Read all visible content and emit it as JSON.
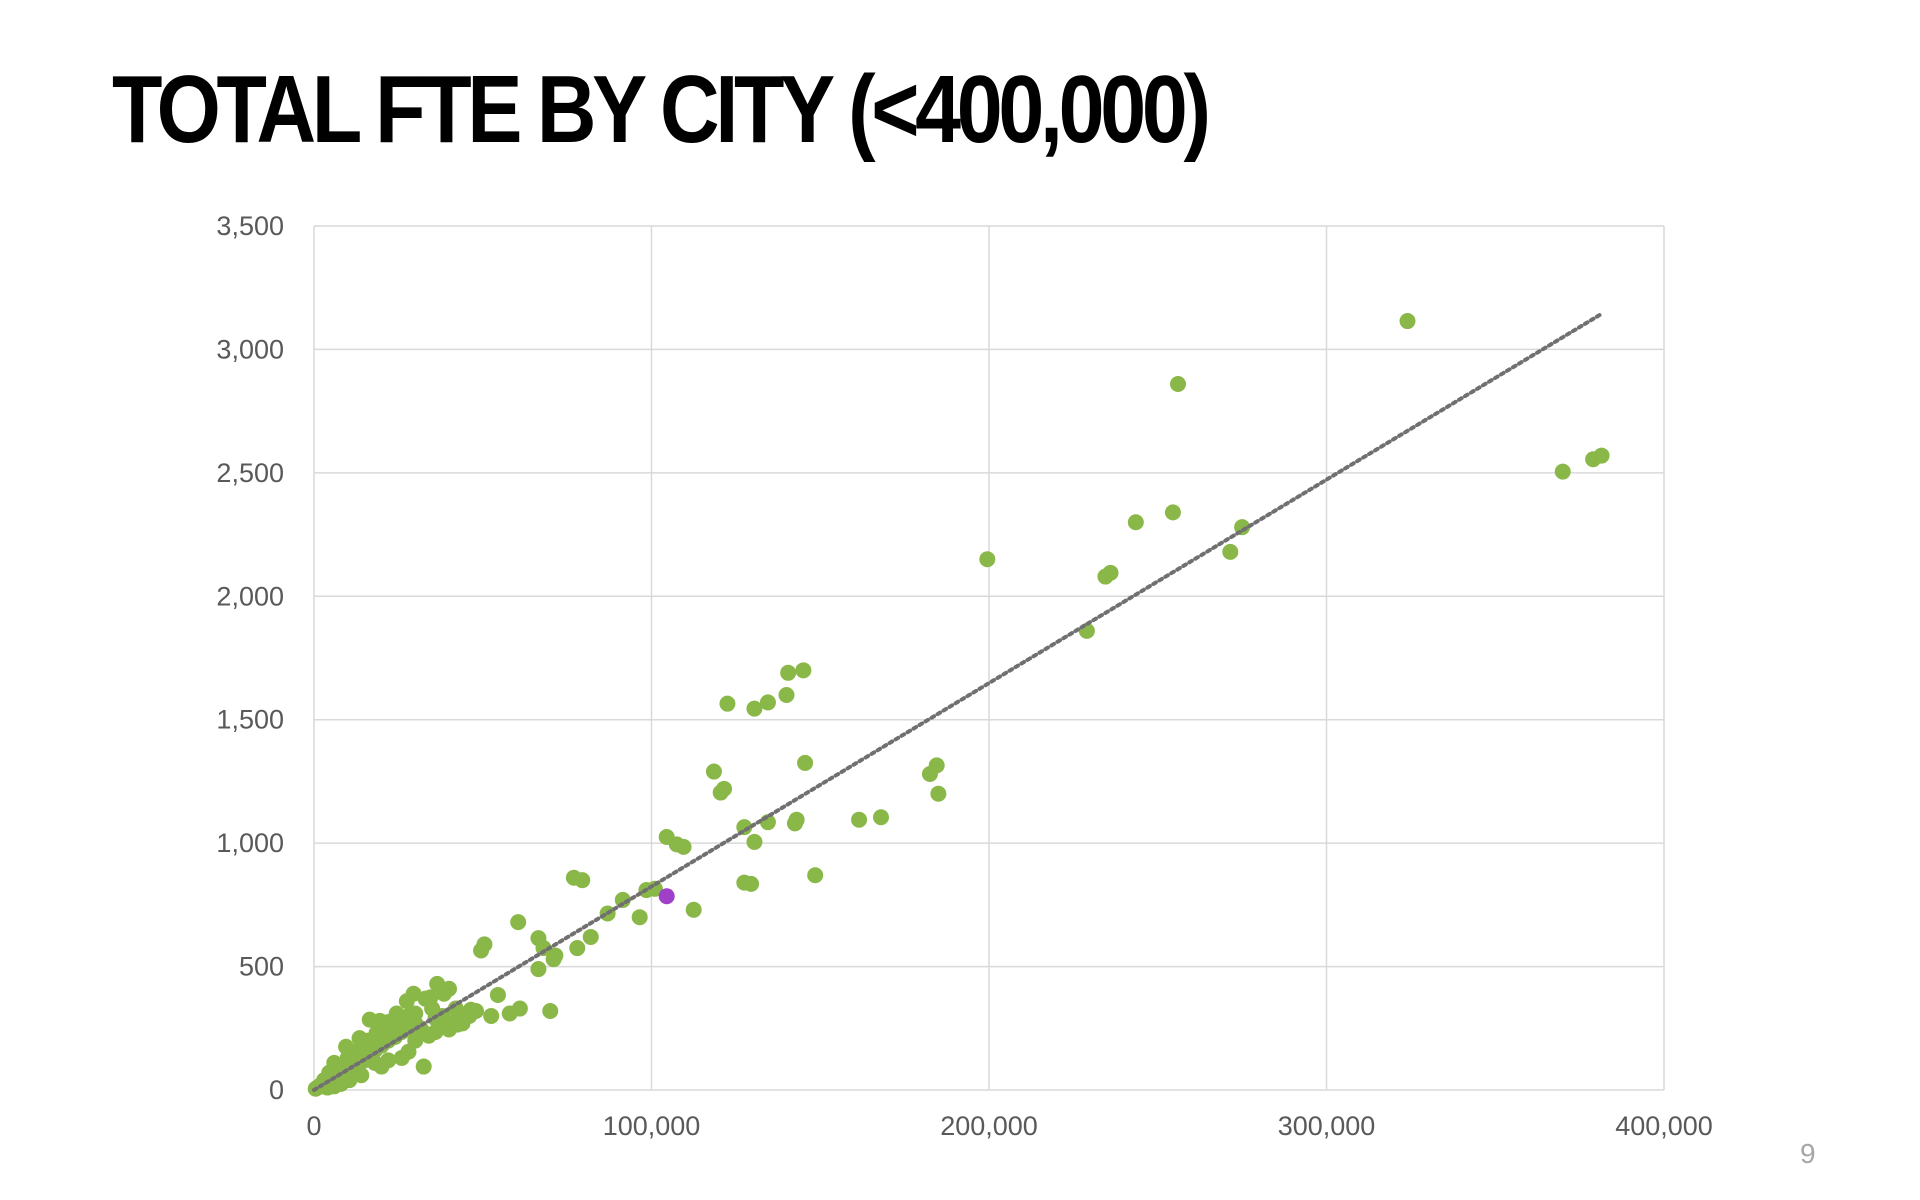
{
  "slide": {
    "title": "TOTAL FTE BY CITY (<400,000)",
    "page_number": "9"
  },
  "chart_data": {
    "type": "scatter",
    "title": "",
    "xlabel": "",
    "ylabel": "",
    "xlim": [
      0,
      400000
    ],
    "ylim": [
      0,
      3500
    ],
    "x_ticks": [
      0,
      100000,
      200000,
      300000,
      400000
    ],
    "y_ticks": [
      0,
      500,
      1000,
      1500,
      2000,
      2500,
      3000,
      3500
    ],
    "x_tick_labels": [
      "0",
      "100,000",
      "200,000",
      "300,000",
      "400,000"
    ],
    "y_tick_labels": [
      "0",
      "500",
      "1,000",
      "1,500",
      "2,000",
      "2,500",
      "3,000",
      "3,500"
    ],
    "grid": true,
    "legend": "none",
    "colors": {
      "points": "#8ab848",
      "highlight": "#a040c8",
      "trendline": "#707070",
      "grid": "#d9d9d9"
    },
    "trendline": {
      "style": "dotted",
      "from": [
        0,
        0
      ],
      "to": [
        381000,
        3140
      ]
    },
    "highlight_point": {
      "x": 104500,
      "y": 785
    },
    "series": [
      {
        "points": [
          [
            324000,
            3115
          ],
          [
            256000,
            2860
          ],
          [
            254500,
            2340
          ],
          [
            243500,
            2300
          ],
          [
            275000,
            2280
          ],
          [
            271500,
            2180
          ],
          [
            236000,
            2095
          ],
          [
            234500,
            2080
          ],
          [
            229000,
            1860
          ],
          [
            199500,
            2150
          ],
          [
            370000,
            2505
          ],
          [
            379000,
            2555
          ],
          [
            381500,
            2570
          ],
          [
            145000,
            1700
          ],
          [
            140500,
            1690
          ],
          [
            140000,
            1600
          ],
          [
            134500,
            1570
          ],
          [
            130500,
            1545
          ],
          [
            122500,
            1565
          ],
          [
            118500,
            1290
          ],
          [
            121500,
            1220
          ],
          [
            120500,
            1205
          ],
          [
            145500,
            1325
          ],
          [
            184500,
            1315
          ],
          [
            182500,
            1280
          ],
          [
            185000,
            1200
          ],
          [
            168000,
            1105
          ],
          [
            161500,
            1095
          ],
          [
            143000,
            1095
          ],
          [
            142500,
            1080
          ],
          [
            134500,
            1085
          ],
          [
            127500,
            1065
          ],
          [
            130500,
            1005
          ],
          [
            104500,
            1025
          ],
          [
            107500,
            995
          ],
          [
            109500,
            985
          ],
          [
            127500,
            840
          ],
          [
            129500,
            835
          ],
          [
            148500,
            870
          ],
          [
            112500,
            730
          ],
          [
            101000,
            815
          ],
          [
            98500,
            810
          ],
          [
            96500,
            700
          ],
          [
            91500,
            770
          ],
          [
            87000,
            715
          ],
          [
            82000,
            620
          ],
          [
            77000,
            860
          ],
          [
            79500,
            850
          ],
          [
            78000,
            575
          ],
          [
            71500,
            545
          ],
          [
            71000,
            530
          ],
          [
            68000,
            575
          ],
          [
            66500,
            615
          ],
          [
            66500,
            490
          ],
          [
            70000,
            320
          ],
          [
            61000,
            330
          ],
          [
            60500,
            680
          ],
          [
            58000,
            310
          ],
          [
            50500,
            590
          ],
          [
            49500,
            565
          ],
          [
            54500,
            385
          ],
          [
            52500,
            300
          ],
          [
            46500,
            325
          ],
          [
            44500,
            290
          ],
          [
            42500,
            265
          ],
          [
            40000,
            410
          ],
          [
            38500,
            390
          ],
          [
            36500,
            430
          ],
          [
            34500,
            375
          ],
          [
            31500,
            250
          ],
          [
            32500,
            95
          ],
          [
            29500,
            390
          ],
          [
            27500,
            360
          ],
          [
            24500,
            310
          ],
          [
            22000,
            275
          ],
          [
            19500,
            280
          ],
          [
            16500,
            285
          ],
          [
            18500,
            230
          ],
          [
            14500,
            170
          ],
          [
            11500,
            150
          ],
          [
            8500,
            90
          ],
          [
            6000,
            110
          ],
          [
            4500,
            70
          ],
          [
            3000,
            40
          ],
          [
            2000,
            20
          ],
          [
            1000,
            10
          ],
          [
            500,
            5
          ],
          [
            3500,
            30
          ],
          [
            6500,
            55
          ],
          [
            9000,
            70
          ],
          [
            12000,
            95
          ],
          [
            14000,
            125
          ],
          [
            16000,
            140
          ],
          [
            18000,
            160
          ],
          [
            20000,
            180
          ],
          [
            22000,
            200
          ],
          [
            24000,
            215
          ],
          [
            26000,
            235
          ],
          [
            28000,
            250
          ],
          [
            30000,
            270
          ],
          [
            32000,
            240
          ],
          [
            34000,
            220
          ],
          [
            36000,
            235
          ],
          [
            38000,
            260
          ],
          [
            40000,
            245
          ],
          [
            42000,
            280
          ],
          [
            44000,
            270
          ],
          [
            46000,
            300
          ],
          [
            48000,
            320
          ],
          [
            38000,
            300
          ],
          [
            35000,
            330
          ],
          [
            30000,
            310
          ],
          [
            27000,
            280
          ],
          [
            25000,
            260
          ],
          [
            23000,
            240
          ],
          [
            21000,
            210
          ],
          [
            19000,
            190
          ],
          [
            17000,
            150
          ],
          [
            15000,
            120
          ],
          [
            13000,
            100
          ],
          [
            11000,
            80
          ],
          [
            9500,
            60
          ],
          [
            7500,
            45
          ],
          [
            5500,
            35
          ],
          [
            4000,
            20
          ],
          [
            2500,
            15
          ],
          [
            10000,
            130
          ],
          [
            12500,
            155
          ],
          [
            16000,
            200
          ],
          [
            20000,
            240
          ],
          [
            24000,
            290
          ],
          [
            28000,
            300
          ],
          [
            33000,
            370
          ],
          [
            26000,
            130
          ],
          [
            28000,
            155
          ],
          [
            22000,
            120
          ],
          [
            18000,
            110
          ],
          [
            14000,
            60
          ],
          [
            10500,
            40
          ],
          [
            8000,
            25
          ],
          [
            6000,
            15
          ],
          [
            4000,
            10
          ],
          [
            30000,
            200
          ],
          [
            36000,
            290
          ],
          [
            42000,
            330
          ],
          [
            20000,
            95
          ],
          [
            13500,
            210
          ],
          [
            9500,
            175
          ]
        ]
      }
    ]
  }
}
